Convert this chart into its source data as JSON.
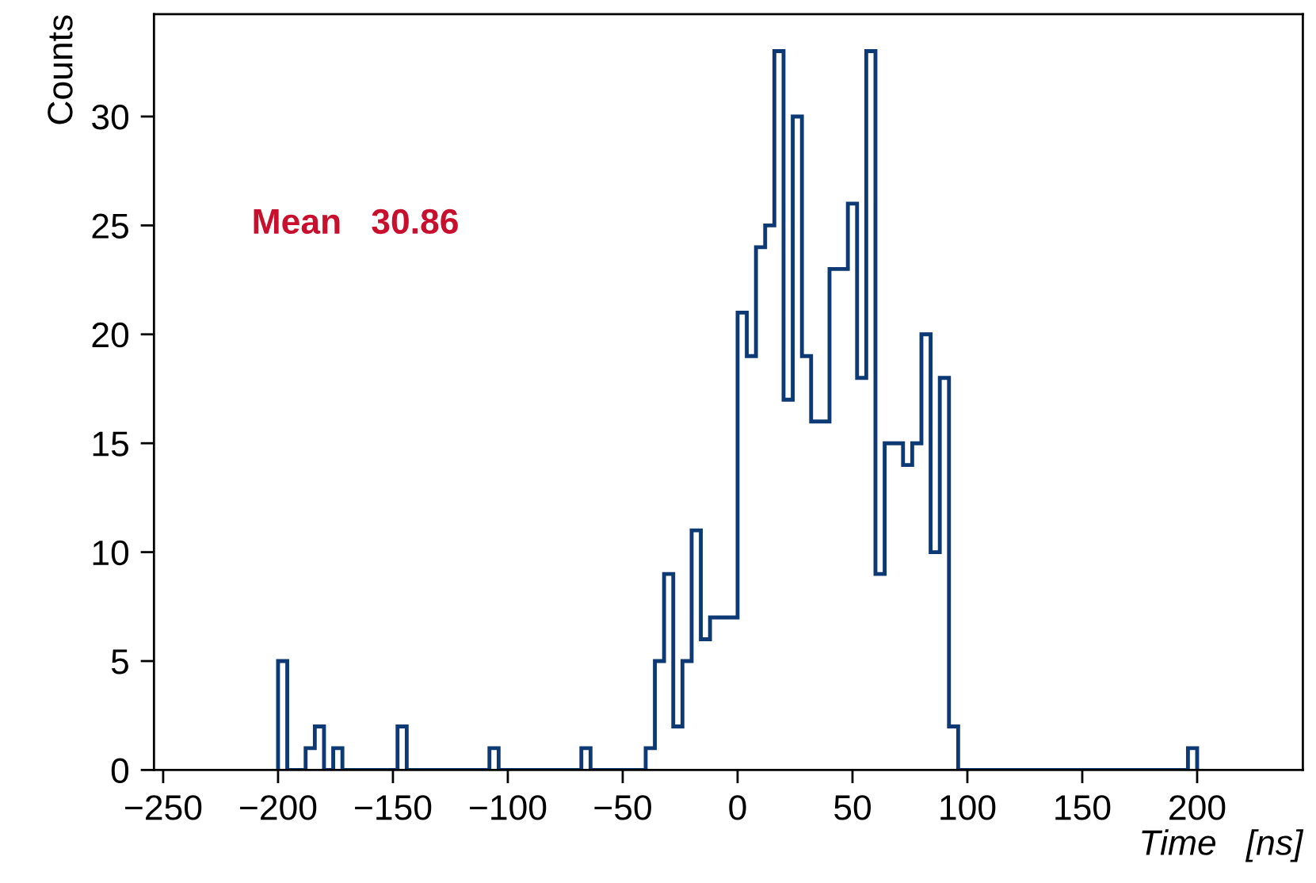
{
  "chart_data": {
    "type": "histogram",
    "xlabel": "Time   [ns]",
    "ylabel": "Counts",
    "annotations": [
      "Mean   30.86"
    ],
    "color": "#0d3a75",
    "bins": [
      -200,
      -196,
      -192,
      -188,
      -184,
      -180,
      -176,
      -172,
      -168,
      -164,
      -160,
      -156,
      -152,
      -148,
      -144,
      -140,
      -136,
      -132,
      -128,
      -124,
      -120,
      -116,
      -112,
      -108,
      -104,
      -100,
      -96,
      -92,
      -88,
      -84,
      -80,
      -76,
      -72,
      -68,
      -64,
      -60,
      -56,
      -52,
      -48,
      -44,
      -40,
      -36,
      -32,
      -28,
      -24,
      -20,
      -16,
      -12,
      -8,
      -4,
      0,
      4,
      8,
      12,
      16,
      20,
      24,
      28,
      32,
      36,
      40,
      44,
      48,
      52,
      56,
      60,
      64,
      68,
      72,
      76,
      80,
      84,
      88,
      92,
      96,
      100,
      104,
      108,
      112,
      116,
      120,
      124,
      128,
      132,
      136,
      140,
      144,
      148,
      152,
      156,
      160,
      164,
      168,
      172,
      176,
      180,
      184,
      188,
      192,
      196,
      200
    ],
    "values": [
      5,
      0,
      0,
      1,
      2,
      0,
      1,
      0,
      0,
      0,
      0,
      0,
      0,
      2,
      0,
      0,
      0,
      0,
      0,
      0,
      0,
      0,
      0,
      1,
      0,
      0,
      0,
      0,
      0,
      0,
      0,
      0,
      0,
      1,
      0,
      0,
      0,
      0,
      0,
      0,
      1,
      5,
      9,
      2,
      5,
      11,
      6,
      7,
      7,
      7,
      21,
      19,
      24,
      25,
      33,
      17,
      30,
      19,
      16,
      16,
      23,
      23,
      26,
      18,
      33,
      9,
      15,
      15,
      14,
      15,
      20,
      10,
      18,
      2,
      0,
      0,
      0,
      0,
      0,
      0,
      0,
      0,
      0,
      0,
      0,
      0,
      0,
      0,
      0,
      0,
      0,
      0,
      0,
      0,
      0,
      0,
      0,
      0,
      0,
      1
    ],
    "xlim": [
      -254,
      246
    ],
    "ylim": [
      0,
      34.7
    ],
    "xticks": [
      {
        "value": -250,
        "label": "−250"
      },
      {
        "value": -200,
        "label": "−200"
      },
      {
        "value": -150,
        "label": "−150"
      },
      {
        "value": -100,
        "label": "−100"
      },
      {
        "value": -50,
        "label": "−50"
      },
      0,
      50,
      100,
      150,
      200
    ],
    "yticks": [
      0,
      5,
      10,
      15,
      20,
      25,
      30
    ],
    "grid": false,
    "legend": false
  }
}
